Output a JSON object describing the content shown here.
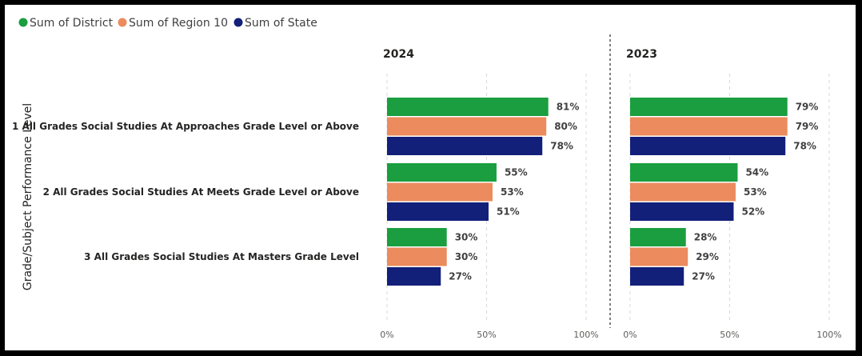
{
  "chart_data": {
    "type": "bar",
    "orientation": "horizontal",
    "ytitle": "Grade/Subject Performance Level",
    "legend_position": "top-left",
    "legend": [
      {
        "name": "Sum of District",
        "color": "#1a9e3f"
      },
      {
        "name": "Sum of Region 10",
        "color": "#ec8b5e"
      },
      {
        "name": "Sum of State",
        "color": "#12207a"
      }
    ],
    "categories": [
      "1 All Grades Social Studies At Approaches Grade Level or Above",
      "2 All Grades Social Studies At Meets Grade Level or Above",
      "3 All Grades Social Studies At Masters Grade Level"
    ],
    "xlim": [
      0,
      100
    ],
    "xticks": [
      "0%",
      "50%",
      "100%"
    ],
    "grid": true,
    "panels": [
      {
        "title": "2024",
        "series": [
          {
            "name": "Sum of District",
            "values": [
              81,
              55,
              30
            ],
            "labels": [
              "81%",
              "55%",
              "30%"
            ]
          },
          {
            "name": "Sum of Region 10",
            "values": [
              80,
              53,
              30
            ],
            "labels": [
              "80%",
              "53%",
              "30%"
            ]
          },
          {
            "name": "Sum of State",
            "values": [
              78,
              51,
              27
            ],
            "labels": [
              "78%",
              "51%",
              "27%"
            ]
          }
        ]
      },
      {
        "title": "2023",
        "series": [
          {
            "name": "Sum of District",
            "values": [
              79,
              54,
              28
            ],
            "labels": [
              "79%",
              "54%",
              "28%"
            ]
          },
          {
            "name": "Sum of Region 10",
            "values": [
              79,
              53,
              29
            ],
            "labels": [
              "79%",
              "53%",
              "29%"
            ]
          },
          {
            "name": "Sum of State",
            "values": [
              78,
              52,
              27
            ],
            "labels": [
              "78%",
              "52%",
              "27%"
            ]
          }
        ]
      }
    ]
  }
}
